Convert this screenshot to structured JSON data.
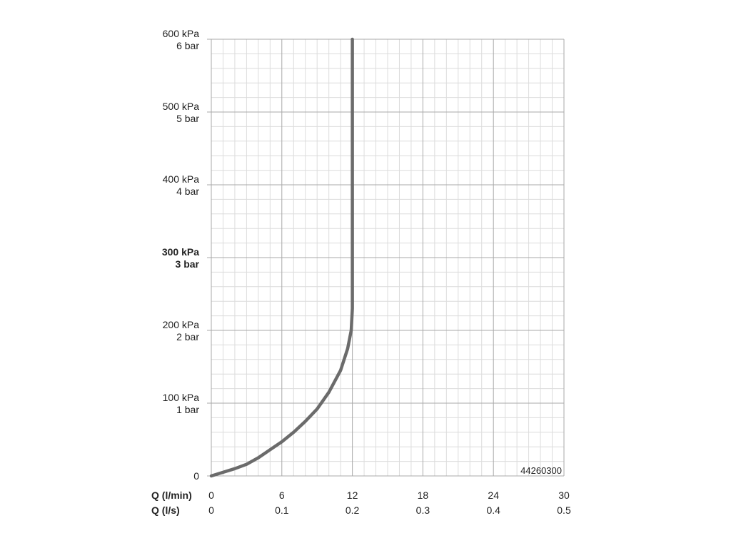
{
  "chart_data": {
    "type": "line",
    "product_code": "44260300",
    "colors": {
      "curve": "#6b6b6b",
      "major_grid": "#a9a9a9",
      "minor_grid": "#dcdcdc",
      "code": "#8a8a8a"
    },
    "x_axis": {
      "range": [
        0,
        30
      ],
      "ticks": [
        0,
        6,
        12,
        18,
        24,
        30
      ],
      "label": "Q (l/min)",
      "tick_labels": [
        "0",
        "6",
        "12",
        "18",
        "24",
        "30"
      ],
      "minor_step": 1
    },
    "x_axis_secondary": {
      "label": "Q (l/s)",
      "tick_labels": [
        "0",
        "0.1",
        "0.2",
        "0.3",
        "0.4",
        "0.5"
      ]
    },
    "y_axis": {
      "range": [
        0,
        600
      ],
      "ticks": [
        0,
        100,
        200,
        300,
        400,
        500,
        600
      ],
      "tick_labels_kpa": [
        "0",
        "100 kPa",
        "200 kPa",
        "300 kPa",
        "400 kPa",
        "500 kPa",
        "600 kPa"
      ],
      "tick_labels_bar": [
        "",
        "1 bar",
        "2 bar",
        "3 bar",
        "4 bar",
        "5 bar",
        "6 bar"
      ],
      "bold_tick": 300,
      "minor_step": 20
    },
    "grid": true,
    "series": [
      {
        "points": [
          [
            0,
            0
          ],
          [
            1,
            5
          ],
          [
            2,
            10
          ],
          [
            3,
            16
          ],
          [
            4,
            25
          ],
          [
            5,
            36
          ],
          [
            6,
            47
          ],
          [
            7,
            60
          ],
          [
            8,
            75
          ],
          [
            9,
            92
          ],
          [
            10,
            115
          ],
          [
            11,
            145
          ],
          [
            11.6,
            175
          ],
          [
            11.9,
            200
          ],
          [
            12,
            230
          ],
          [
            12,
            300
          ],
          [
            12,
            400
          ],
          [
            12,
            500
          ],
          [
            12,
            600
          ]
        ]
      }
    ]
  }
}
